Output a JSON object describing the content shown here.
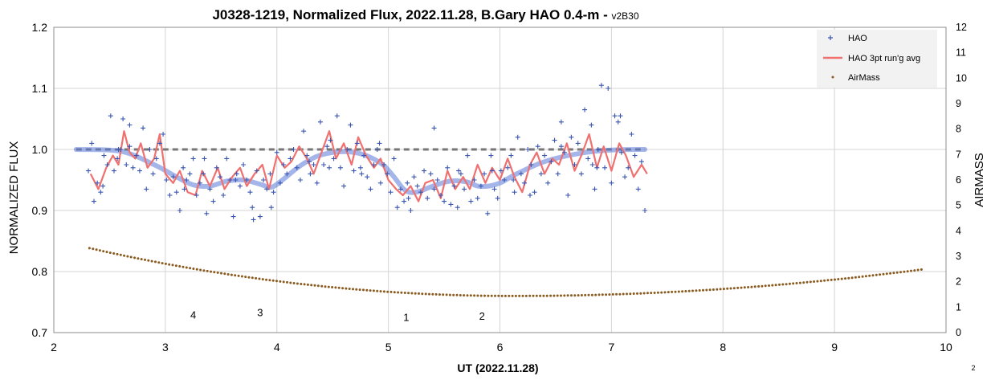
{
  "chart_data": {
    "type": "scatter",
    "title": "J0328-1219, Normalized Flux, 2022.11.28, B.Gary HAO 0.4-m - ",
    "title_suffix": "v2B30",
    "xlabel": "UT (2022.11.28)",
    "ylabel": "NORMALIZED FLUX",
    "y2label": "AIRMASS",
    "xlim": [
      2,
      10
    ],
    "ylim": [
      0.7,
      1.2
    ],
    "y2lim": [
      0,
      12
    ],
    "x_ticks": [
      "2",
      "3",
      "4",
      "5",
      "6",
      "7",
      "8",
      "9",
      "10"
    ],
    "y_ticks": [
      "0.7",
      "0.8",
      "0.9",
      "1.0",
      "1.1",
      "1.2"
    ],
    "y2_ticks": [
      "0",
      "1",
      "2",
      "3",
      "4",
      "5",
      "6",
      "7",
      "8",
      "9",
      "10",
      "11",
      "12"
    ],
    "grid": true,
    "legend_position": "top-right",
    "legend": [
      {
        "label": "HAO",
        "marker": "plus",
        "color": "#3a55b0"
      },
      {
        "label": "HAO 3pt run'g avg",
        "marker": "line",
        "color": "#f07070"
      },
      {
        "label": "AirMass",
        "marker": "dot",
        "color": "#8a5a1e"
      }
    ],
    "reference_level": 1.0,
    "model_curve": {
      "color": "#5a78d8",
      "x": [
        2.2,
        2.6,
        2.9,
        3.1,
        3.25,
        3.4,
        3.55,
        3.7,
        3.85,
        3.95,
        4.05,
        4.2,
        4.35,
        4.5,
        4.65,
        4.8,
        4.95,
        5.05,
        5.15,
        5.25,
        5.4,
        5.55,
        5.7,
        5.8,
        5.9,
        6.0,
        6.15,
        6.4,
        6.7,
        7.0,
        7.3
      ],
      "y": [
        1.0,
        0.997,
        0.975,
        0.955,
        0.942,
        0.94,
        0.948,
        0.95,
        0.943,
        0.938,
        0.95,
        0.972,
        0.988,
        0.995,
        0.996,
        0.99,
        0.975,
        0.955,
        0.933,
        0.93,
        0.94,
        0.948,
        0.947,
        0.94,
        0.94,
        0.945,
        0.96,
        0.98,
        0.993,
        0.999,
        1.0
      ]
    },
    "running_average": {
      "color": "#f07070",
      "x": [
        2.33,
        2.4,
        2.47,
        2.53,
        2.58,
        2.63,
        2.68,
        2.73,
        2.78,
        2.84,
        2.9,
        2.95,
        3.0,
        3.07,
        3.13,
        3.2,
        3.27,
        3.33,
        3.4,
        3.47,
        3.53,
        3.6,
        3.67,
        3.73,
        3.8,
        3.87,
        3.93,
        4.0,
        4.07,
        4.13,
        4.2,
        4.27,
        4.33,
        4.4,
        4.47,
        4.53,
        4.6,
        4.67,
        4.73,
        4.8,
        4.87,
        4.93,
        5.0,
        5.07,
        5.13,
        5.2,
        5.27,
        5.33,
        5.4,
        5.47,
        5.53,
        5.6,
        5.67,
        5.73,
        5.8,
        5.87,
        5.93,
        6.0,
        6.07,
        6.13,
        6.2,
        6.27,
        6.33,
        6.4,
        6.47,
        6.53,
        6.6,
        6.67,
        6.73,
        6.8,
        6.87,
        6.93,
        7.0,
        7.07,
        7.13,
        7.2,
        7.27,
        7.32
      ],
      "y": [
        0.96,
        0.935,
        0.97,
        0.99,
        0.975,
        1.03,
        0.995,
        0.985,
        1.01,
        0.97,
        0.985,
        1.025,
        0.96,
        0.945,
        0.965,
        0.93,
        0.925,
        0.965,
        0.94,
        0.97,
        0.935,
        0.955,
        0.97,
        0.94,
        0.96,
        0.975,
        0.935,
        0.99,
        0.97,
        0.98,
        1.005,
        0.985,
        0.96,
        0.995,
        1.03,
        0.985,
        1.01,
        0.975,
        1.02,
        0.99,
        0.97,
        0.985,
        0.95,
        0.935,
        0.925,
        0.94,
        0.915,
        0.945,
        0.95,
        0.92,
        0.965,
        0.935,
        0.955,
        0.935,
        0.975,
        0.945,
        0.97,
        0.95,
        0.985,
        0.955,
        0.93,
        0.975,
        0.995,
        0.96,
        0.985,
        0.975,
        1.01,
        0.965,
        0.99,
        1.025,
        0.97,
        1.005,
        0.965,
        1.01,
        0.99,
        0.955,
        0.975,
        0.96
      ]
    },
    "hao_points": {
      "color": "#3a55b0",
      "x": [
        2.31,
        2.34,
        2.36,
        2.39,
        2.42,
        2.45,
        2.48,
        2.51,
        2.54,
        2.57,
        2.6,
        2.62,
        2.65,
        2.68,
        2.71,
        2.74,
        2.77,
        2.8,
        2.83,
        2.86,
        2.89,
        2.92,
        2.95,
        2.98,
        3.01,
        3.04,
        3.07,
        3.1,
        3.13,
        3.16,
        3.19,
        3.22,
        3.25,
        3.28,
        3.31,
        3.34,
        3.37,
        3.4,
        3.43,
        3.46,
        3.49,
        3.52,
        3.55,
        3.58,
        3.61,
        3.64,
        3.67,
        3.7,
        3.73,
        3.76,
        3.79,
        3.82,
        3.85,
        3.88,
        3.91,
        3.94,
        3.97,
        4.0,
        4.03,
        4.06,
        4.09,
        4.12,
        4.15,
        4.18,
        4.21,
        4.24,
        4.27,
        4.3,
        4.33,
        4.36,
        4.39,
        4.42,
        4.45,
        4.48,
        4.51,
        4.54,
        4.57,
        4.6,
        4.63,
        4.66,
        4.69,
        4.72,
        4.75,
        4.78,
        4.81,
        4.84,
        4.87,
        4.9,
        4.93,
        4.96,
        4.99,
        5.02,
        5.05,
        5.08,
        5.11,
        5.14,
        5.17,
        5.2,
        5.23,
        5.26,
        5.29,
        5.32,
        5.35,
        5.38,
        5.41,
        5.44,
        5.47,
        5.5,
        5.53,
        5.56,
        5.59,
        5.62,
        5.65,
        5.68,
        5.71,
        5.74,
        5.77,
        5.8,
        5.83,
        5.86,
        5.89,
        5.92,
        5.95,
        5.98,
        6.01,
        6.04,
        6.07,
        6.1,
        6.13,
        6.16,
        6.19,
        6.22,
        6.25,
        6.28,
        6.31,
        6.34,
        6.37,
        6.4,
        6.43,
        6.46,
        6.49,
        6.52,
        6.55,
        6.58,
        6.61,
        6.64,
        6.67,
        6.7,
        6.73,
        6.76,
        6.79,
        6.82,
        6.85,
        6.88,
        6.91,
        6.94,
        6.97,
        7.0,
        7.03,
        7.06,
        7.09,
        7.12,
        7.15,
        7.18,
        7.21,
        7.24,
        7.27,
        7.3,
        2.44,
        2.68,
        3.17,
        3.63,
        3.95,
        4.47,
        4.76,
        5.18,
        5.41,
        5.93,
        6.27,
        6.55,
        6.87,
        7.08,
        2.58,
        3.35,
        3.78,
        4.29,
        4.92,
        5.63,
        6.12,
        6.83
      ],
      "y": [
        0.965,
        1.01,
        0.915,
        0.945,
        0.93,
        0.99,
        0.975,
        1.055,
        0.965,
        0.985,
        1.0,
        1.05,
        0.975,
        1.04,
        0.97,
        0.99,
        0.965,
        1.035,
        0.935,
        1.0,
        0.96,
        0.985,
        1.01,
        1.025,
        0.95,
        0.925,
        0.955,
        0.93,
        0.9,
        0.97,
        0.95,
        0.96,
        0.985,
        0.925,
        0.945,
        0.96,
        0.895,
        0.935,
        0.915,
        0.97,
        0.955,
        0.925,
        0.985,
        0.95,
        0.89,
        0.96,
        0.94,
        0.975,
        0.95,
        0.93,
        0.885,
        0.965,
        0.89,
        0.95,
        0.935,
        0.96,
        0.93,
        0.995,
        0.945,
        0.975,
        0.96,
        0.985,
        1.0,
        0.97,
        0.95,
        1.03,
        0.99,
        0.96,
        0.975,
        0.945,
        1.045,
        0.975,
        1.005,
        1.015,
        0.985,
        1.055,
        0.97,
        0.94,
        1.0,
        1.04,
        0.965,
        1.01,
        0.97,
        0.99,
        0.955,
        0.935,
        0.975,
        1.0,
        0.945,
        0.975,
        0.96,
        0.93,
        0.985,
        0.905,
        0.935,
        0.915,
        0.945,
        0.9,
        0.955,
        0.94,
        0.93,
        0.965,
        0.92,
        0.96,
        0.935,
        0.95,
        0.925,
        0.915,
        0.97,
        0.91,
        0.94,
        0.905,
        0.96,
        0.935,
        0.99,
        0.915,
        0.95,
        0.92,
        0.94,
        0.96,
        0.895,
        0.99,
        0.935,
        0.92,
        0.965,
        0.95,
        0.97,
        0.99,
        0.93,
        1.02,
        0.96,
        0.945,
        1.0,
        0.975,
        0.93,
        1.005,
        0.96,
        0.99,
        0.945,
        0.98,
        1.015,
        0.96,
        1.005,
        0.995,
        0.925,
        1.02,
        0.975,
        1.01,
        0.96,
        1.065,
        0.985,
        1.04,
        0.935,
        1.0,
        1.105,
        0.97,
        1.1,
        0.945,
        1.055,
        1.045,
        0.995,
        0.955,
        0.97,
        1.025,
        0.99,
        0.935,
        0.98,
        0.9,
        0.94,
        1.005,
        0.935,
        0.95,
        0.905,
        0.97,
        0.96,
        0.92,
        1.035,
        0.965,
        0.925,
        1.045,
        0.97,
        1.055,
        1.0,
        0.985,
        0.905,
        0.98,
        1.01,
        0.965,
        0.95,
        0.975
      ]
    },
    "airmass": {
      "color": "#8a5a1e",
      "x_start": 2.32,
      "x_end": 9.78,
      "x_min": 6.12,
      "value_start": 3.32,
      "value_min": 1.44,
      "value_end": 2.48
    },
    "annotations": [
      {
        "text": "4",
        "x": 3.25,
        "y": 0.723
      },
      {
        "text": "3",
        "x": 3.85,
        "y": 0.727
      },
      {
        "text": "1",
        "x": 5.16,
        "y": 0.719
      },
      {
        "text": "2",
        "x": 5.84,
        "y": 0.721
      }
    ],
    "corner_note": "2"
  }
}
